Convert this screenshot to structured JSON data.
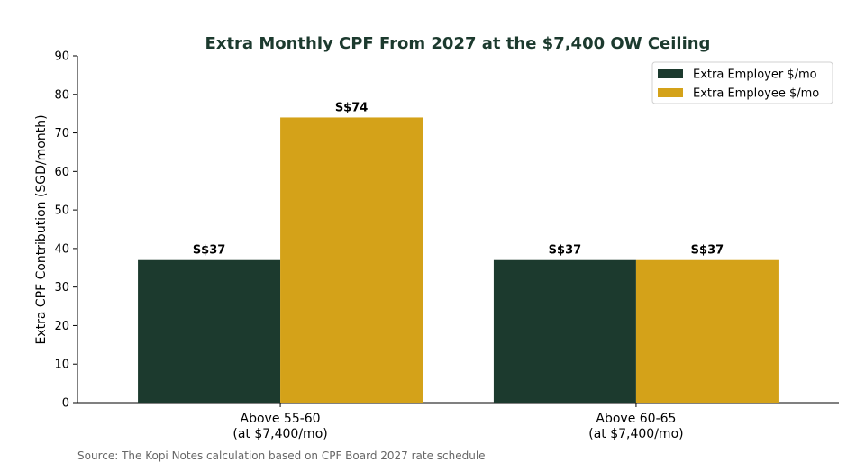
{
  "chart_data": {
    "type": "bar",
    "title": "Extra Monthly CPF From 2027 at the $7,400 OW Ceiling",
    "ylabel": "Extra CPF Contribution (SGD/month)",
    "xlabel": "",
    "categories": [
      [
        "Above 55-60",
        "(at $7,400/mo)"
      ],
      [
        "Above 60-65",
        "(at $7,400/mo)"
      ]
    ],
    "series": [
      {
        "name": "Extra Employer $/mo",
        "values": [
          37,
          37
        ],
        "color": "#1c3a2e"
      },
      {
        "name": "Extra Employee $/mo",
        "values": [
          74,
          37
        ],
        "color": "#d4a219"
      }
    ],
    "data_labels": [
      [
        "S$37",
        "S$37"
      ],
      [
        "S$74",
        "S$37"
      ]
    ],
    "ylim": [
      0,
      90
    ],
    "yticks": [
      0,
      10,
      20,
      30,
      40,
      50,
      60,
      70,
      80,
      90
    ],
    "grid": false,
    "legend_position": "top-right",
    "title_color": "#1c3a2e"
  },
  "source_note": "Source: The Kopi Notes calculation based on CPF Board 2027 rate schedule"
}
